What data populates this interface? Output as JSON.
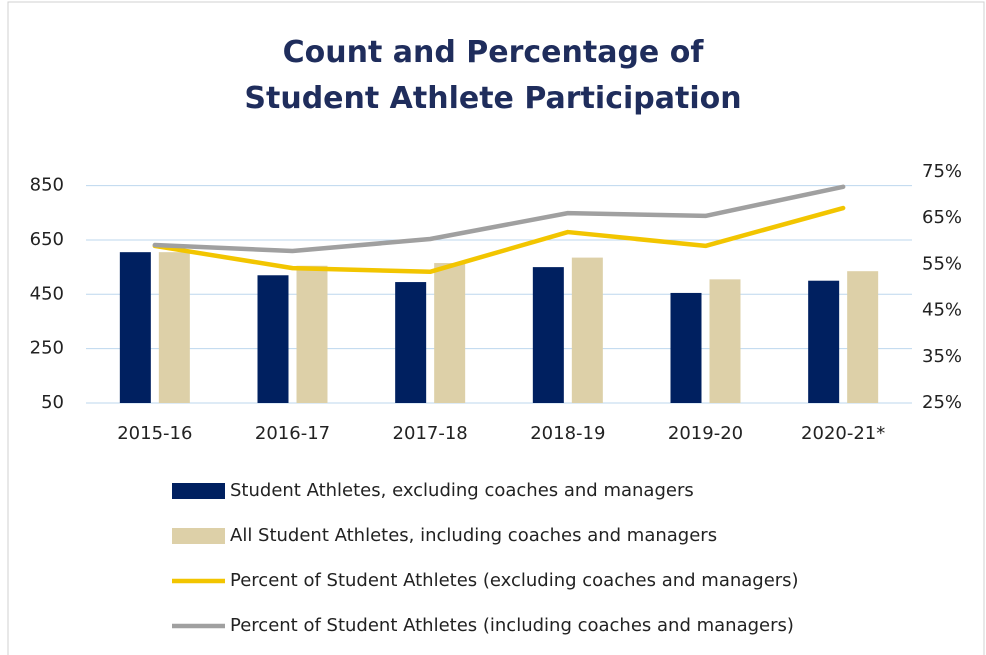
{
  "chart_data": {
    "type": "bar",
    "title": "Count and Percentage of Student Athlete Participation",
    "categories": [
      "2015-16",
      "2016-17",
      "2017-18",
      "2018-19",
      "2019-20",
      "2020-21*"
    ],
    "series": [
      {
        "name": "Student Athletes, excluding coaches and managers",
        "color": "#002060",
        "type": "bar",
        "values": [
          605,
          520,
          495,
          550,
          455,
          500
        ]
      },
      {
        "name": "All Student Athletes, including  coaches and managers",
        "color": "#ddd0a8",
        "type": "bar",
        "values": [
          605,
          555,
          565,
          585,
          505,
          535
        ]
      },
      {
        "name": "Percent of Student Athletes (excluding coaches and managers)",
        "color": "#f2c500",
        "type": "line",
        "axis": "y2",
        "values": [
          59,
          54.2,
          53.4,
          62,
          59,
          67.2
        ]
      },
      {
        "name": "Percent of Student Athletes (including coaches and managers)",
        "color": "#a0a0a0",
        "type": "line",
        "axis": "y2",
        "values": [
          59.2,
          57.9,
          60.5,
          66.1,
          65.5,
          71.8
        ]
      }
    ],
    "ylim": [
      50,
      900
    ],
    "yticks": [
      50,
      250,
      450,
      650,
      850
    ],
    "y2lim": [
      25,
      75
    ],
    "y2ticks": [
      {
        "value": 25,
        "label": "25%"
      },
      {
        "value": 35,
        "label": "35%"
      },
      {
        "value": 45,
        "label": "45%"
      },
      {
        "value": 55,
        "label": "55%"
      },
      {
        "value": 65,
        "label": "65%"
      },
      {
        "value": 75,
        "label": "75%"
      }
    ],
    "grid": true,
    "legend": "bottom"
  }
}
